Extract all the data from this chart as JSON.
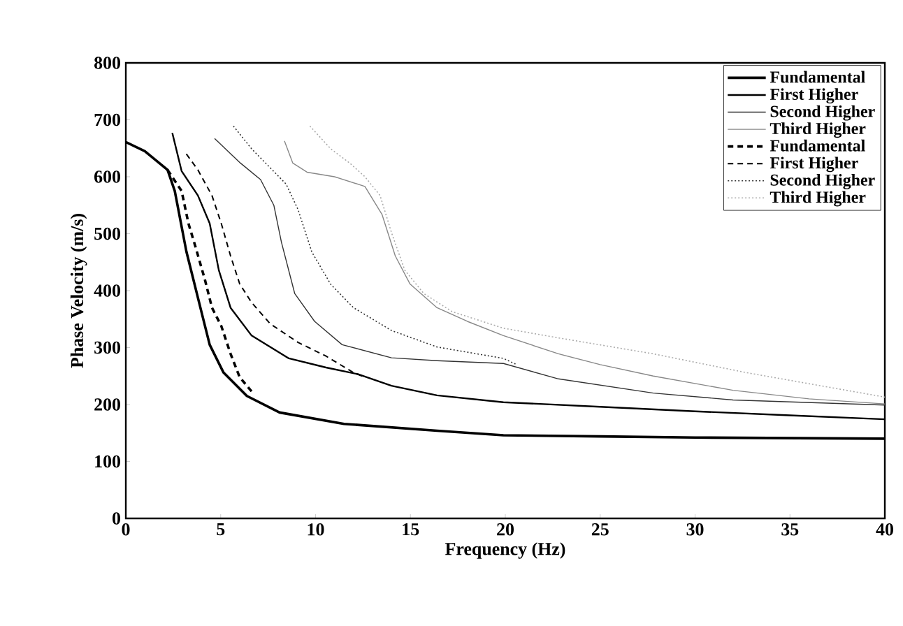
{
  "chart_data": {
    "type": "line",
    "xlabel": "Frequency (Hz)",
    "ylabel": "Phase Velocity (m/s)",
    "xlim": [
      0,
      40
    ],
    "ylim": [
      0,
      800
    ],
    "xticks": [
      0,
      5,
      10,
      15,
      20,
      25,
      30,
      35,
      40
    ],
    "yticks": [
      0,
      100,
      200,
      300,
      400,
      500,
      600,
      700,
      800
    ],
    "grid": false,
    "legend": "top right",
    "marker": "none",
    "series": [
      {
        "name": "Fundamental",
        "color": "#000000",
        "line_style": "solid",
        "x": [
          0,
          1,
          2.2,
          2.58,
          3.19,
          3.93,
          4.42,
          5.15,
          6.38,
          8.1,
          11.5,
          16.4,
          19.9,
          25,
          30,
          35,
          40
        ],
        "values": [
          661,
          645,
          612,
          575,
          469,
          370,
          305,
          256,
          215,
          186,
          166,
          154,
          146,
          144,
          142,
          141,
          140
        ]
      },
      {
        "name": "First Higher",
        "color": "#000000",
        "line_style": "solid",
        "x": [
          2.45,
          2.94,
          3.8,
          4.42,
          4.9,
          5.52,
          6.63,
          8.59,
          10.55,
          12.27,
          14.0,
          16.4,
          19.9,
          25,
          30,
          35,
          40
        ],
        "values": [
          677,
          610,
          567,
          518,
          436,
          370,
          321,
          281,
          265,
          253,
          233,
          216,
          204,
          196,
          188,
          181,
          174
        ]
      },
      {
        "name": "Second Higher",
        "color": "#333333",
        "line_style": "solid",
        "x": [
          4.68,
          6.04,
          7.1,
          7.8,
          8.2,
          8.9,
          9.95,
          11.4,
          14.0,
          16.4,
          19.9,
          22.8,
          27.8,
          32,
          40
        ],
        "values": [
          667,
          624,
          595,
          550,
          485,
          395,
          346,
          305,
          282,
          277,
          272,
          245,
          220,
          208,
          199
        ]
      },
      {
        "name": "Third Higher",
        "color": "#888888",
        "line_style": "solid",
        "x": [
          8.36,
          8.8,
          9.55,
          11.0,
          12.6,
          13.5,
          14.2,
          14.97,
          16.4,
          18.0,
          19.9,
          22.8,
          25,
          27.8,
          32,
          36,
          40
        ],
        "values": [
          663,
          624,
          608,
          600,
          583,
          534,
          461,
          412,
          370,
          346,
          321,
          289,
          270,
          250,
          225,
          210,
          201
        ]
      },
      {
        "name": "Fundamental",
        "color": "#000000",
        "line_style": "dashed",
        "x": [
          2.2,
          2.94,
          3.3,
          3.68,
          4.17,
          4.54,
          5.03,
          5.52,
          6.0,
          6.63
        ],
        "values": [
          612,
          575,
          518,
          476,
          419,
          370,
          338,
          289,
          248,
          223
        ]
      },
      {
        "name": "First Higher",
        "color": "#000000",
        "line_style": "dashed",
        "x": [
          3.19,
          3.8,
          4.54,
          5.03,
          5.52,
          6.0,
          6.63,
          7.6,
          9.08,
          10.55,
          12.0,
          12.6
        ],
        "values": [
          640,
          612,
          567,
          518,
          461,
          412,
          379,
          342,
          309,
          285,
          256,
          248
        ]
      },
      {
        "name": "Second Higher",
        "color": "#333333",
        "line_style": "dotted",
        "x": [
          5.67,
          6.63,
          7.6,
          8.45,
          9.08,
          9.8,
          10.8,
          12.0,
          14.0,
          16.4,
          19.9,
          20.6
        ],
        "values": [
          689,
          649,
          616,
          587,
          542,
          468,
          411,
          370,
          330,
          301,
          281,
          270
        ]
      },
      {
        "name": "Third Higher",
        "color": "#aaaaaa",
        "line_style": "dotted",
        "x": [
          9.7,
          10.8,
          11.8,
          12.6,
          13.4,
          14.0,
          14.7,
          15.7,
          17.2,
          19.9,
          22.8,
          27.8,
          32.7,
          40
        ],
        "values": [
          689,
          649,
          624,
          600,
          567,
          502,
          436,
          395,
          363,
          334,
          317,
          289,
          256,
          213
        ]
      }
    ]
  }
}
